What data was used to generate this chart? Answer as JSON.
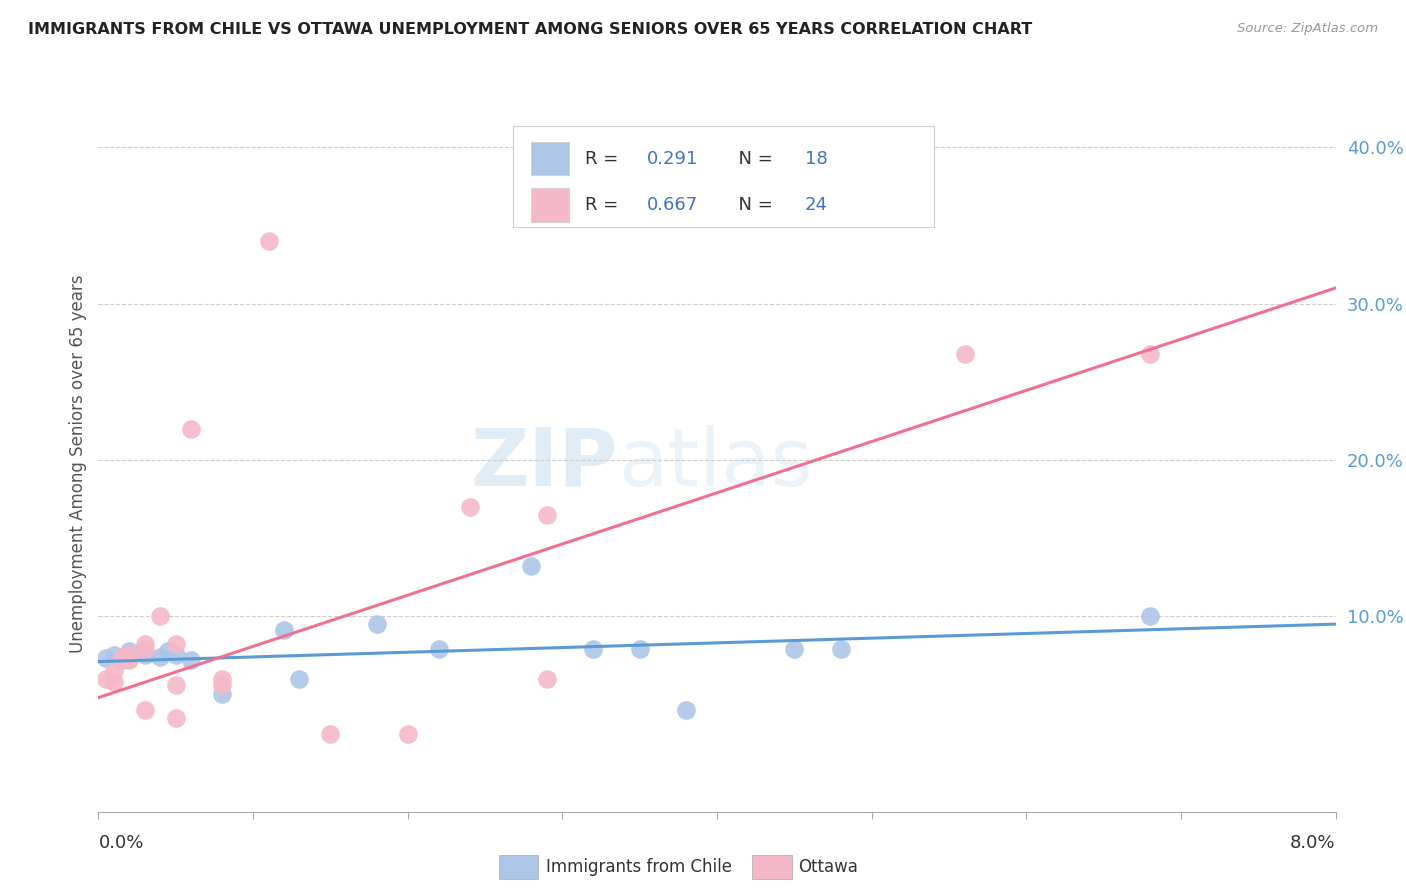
{
  "title": "IMMIGRANTS FROM CHILE VS OTTAWA UNEMPLOYMENT AMONG SENIORS OVER 65 YEARS CORRELATION CHART",
  "source": "Source: ZipAtlas.com",
  "ylabel": "Unemployment Among Seniors over 65 years",
  "xlim": [
    0.0,
    0.08
  ],
  "ylim": [
    -0.025,
    0.42
  ],
  "watermark_zip": "ZIP",
  "watermark_atlas": "atlas",
  "blue_color": "#adc6e8",
  "pink_color": "#f5b8c8",
  "blue_line_color": "#5b9bd5",
  "pink_line_color": "#f07090",
  "legend_dark_color": "#333355",
  "legend_blue_color": "#4472c4",
  "blue_scatter": [
    [
      0.0005,
      0.073
    ],
    [
      0.001,
      0.075
    ],
    [
      0.0015,
      0.072
    ],
    [
      0.002,
      0.073
    ],
    [
      0.002,
      0.078
    ],
    [
      0.003,
      0.075
    ],
    [
      0.004,
      0.074
    ],
    [
      0.0045,
      0.078
    ],
    [
      0.005,
      0.075
    ],
    [
      0.006,
      0.072
    ],
    [
      0.008,
      0.05
    ],
    [
      0.012,
      0.091
    ],
    [
      0.013,
      0.06
    ],
    [
      0.018,
      0.095
    ],
    [
      0.022,
      0.079
    ],
    [
      0.028,
      0.132
    ],
    [
      0.032,
      0.079
    ],
    [
      0.035,
      0.079
    ],
    [
      0.038,
      0.04
    ],
    [
      0.045,
      0.079
    ],
    [
      0.048,
      0.079
    ],
    [
      0.068,
      0.1
    ]
  ],
  "pink_scatter": [
    [
      0.0005,
      0.06
    ],
    [
      0.001,
      0.058
    ],
    [
      0.001,
      0.065
    ],
    [
      0.0015,
      0.074
    ],
    [
      0.002,
      0.076
    ],
    [
      0.002,
      0.072
    ],
    [
      0.003,
      0.079
    ],
    [
      0.003,
      0.082
    ],
    [
      0.003,
      0.04
    ],
    [
      0.004,
      0.1
    ],
    [
      0.005,
      0.082
    ],
    [
      0.005,
      0.056
    ],
    [
      0.005,
      0.035
    ],
    [
      0.006,
      0.22
    ],
    [
      0.008,
      0.06
    ],
    [
      0.008,
      0.056
    ],
    [
      0.011,
      0.34
    ],
    [
      0.015,
      0.025
    ],
    [
      0.02,
      0.025
    ],
    [
      0.024,
      0.17
    ],
    [
      0.029,
      0.165
    ],
    [
      0.029,
      0.06
    ],
    [
      0.056,
      0.268
    ],
    [
      0.068,
      0.268
    ]
  ],
  "blue_trend_x": [
    0.0,
    0.08
  ],
  "blue_trend_y": [
    0.071,
    0.095
  ],
  "pink_trend_x": [
    0.0,
    0.08
  ],
  "pink_trend_y": [
    0.048,
    0.31
  ]
}
